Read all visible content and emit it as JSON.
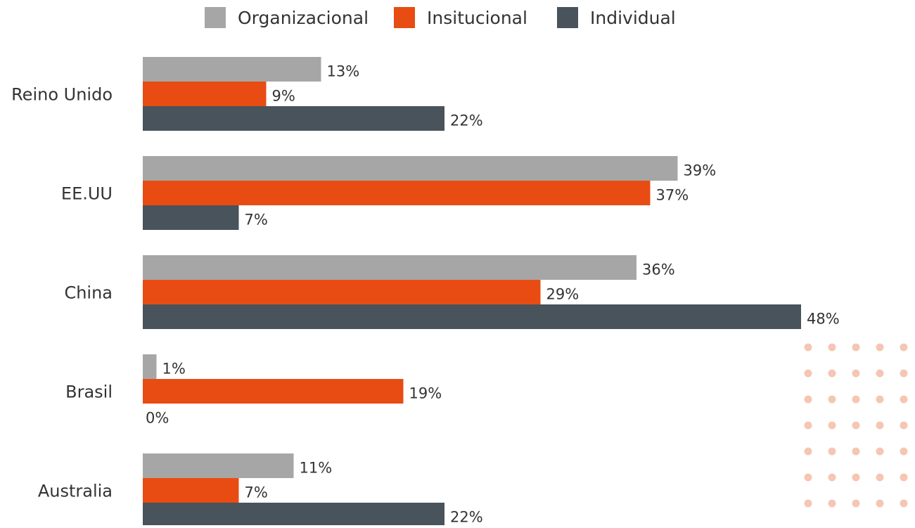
{
  "chart_data": {
    "type": "bar",
    "orientation": "horizontal",
    "categories": [
      "Reino Unido",
      "EE.UU",
      "China",
      "Brasil",
      "Australia"
    ],
    "series": [
      {
        "name": "Organizacional",
        "color": "#a6a6a6",
        "values": [
          13,
          39,
          36,
          1,
          11
        ],
        "value_labels": [
          "13%",
          "39%",
          "36%",
          "1%",
          "11%"
        ]
      },
      {
        "name": "Insitucional",
        "color": "#e84c13",
        "values": [
          9,
          37,
          29,
          19,
          7
        ],
        "value_labels": [
          "9%",
          "37%",
          "29%",
          "19%",
          "7%"
        ]
      },
      {
        "name": "Individual",
        "color": "#48535b",
        "values": [
          22,
          7,
          48,
          0,
          22
        ],
        "value_labels": [
          "22%",
          "7%",
          "48%",
          "0%",
          "22%"
        ]
      }
    ],
    "legend": "top"
  }
}
